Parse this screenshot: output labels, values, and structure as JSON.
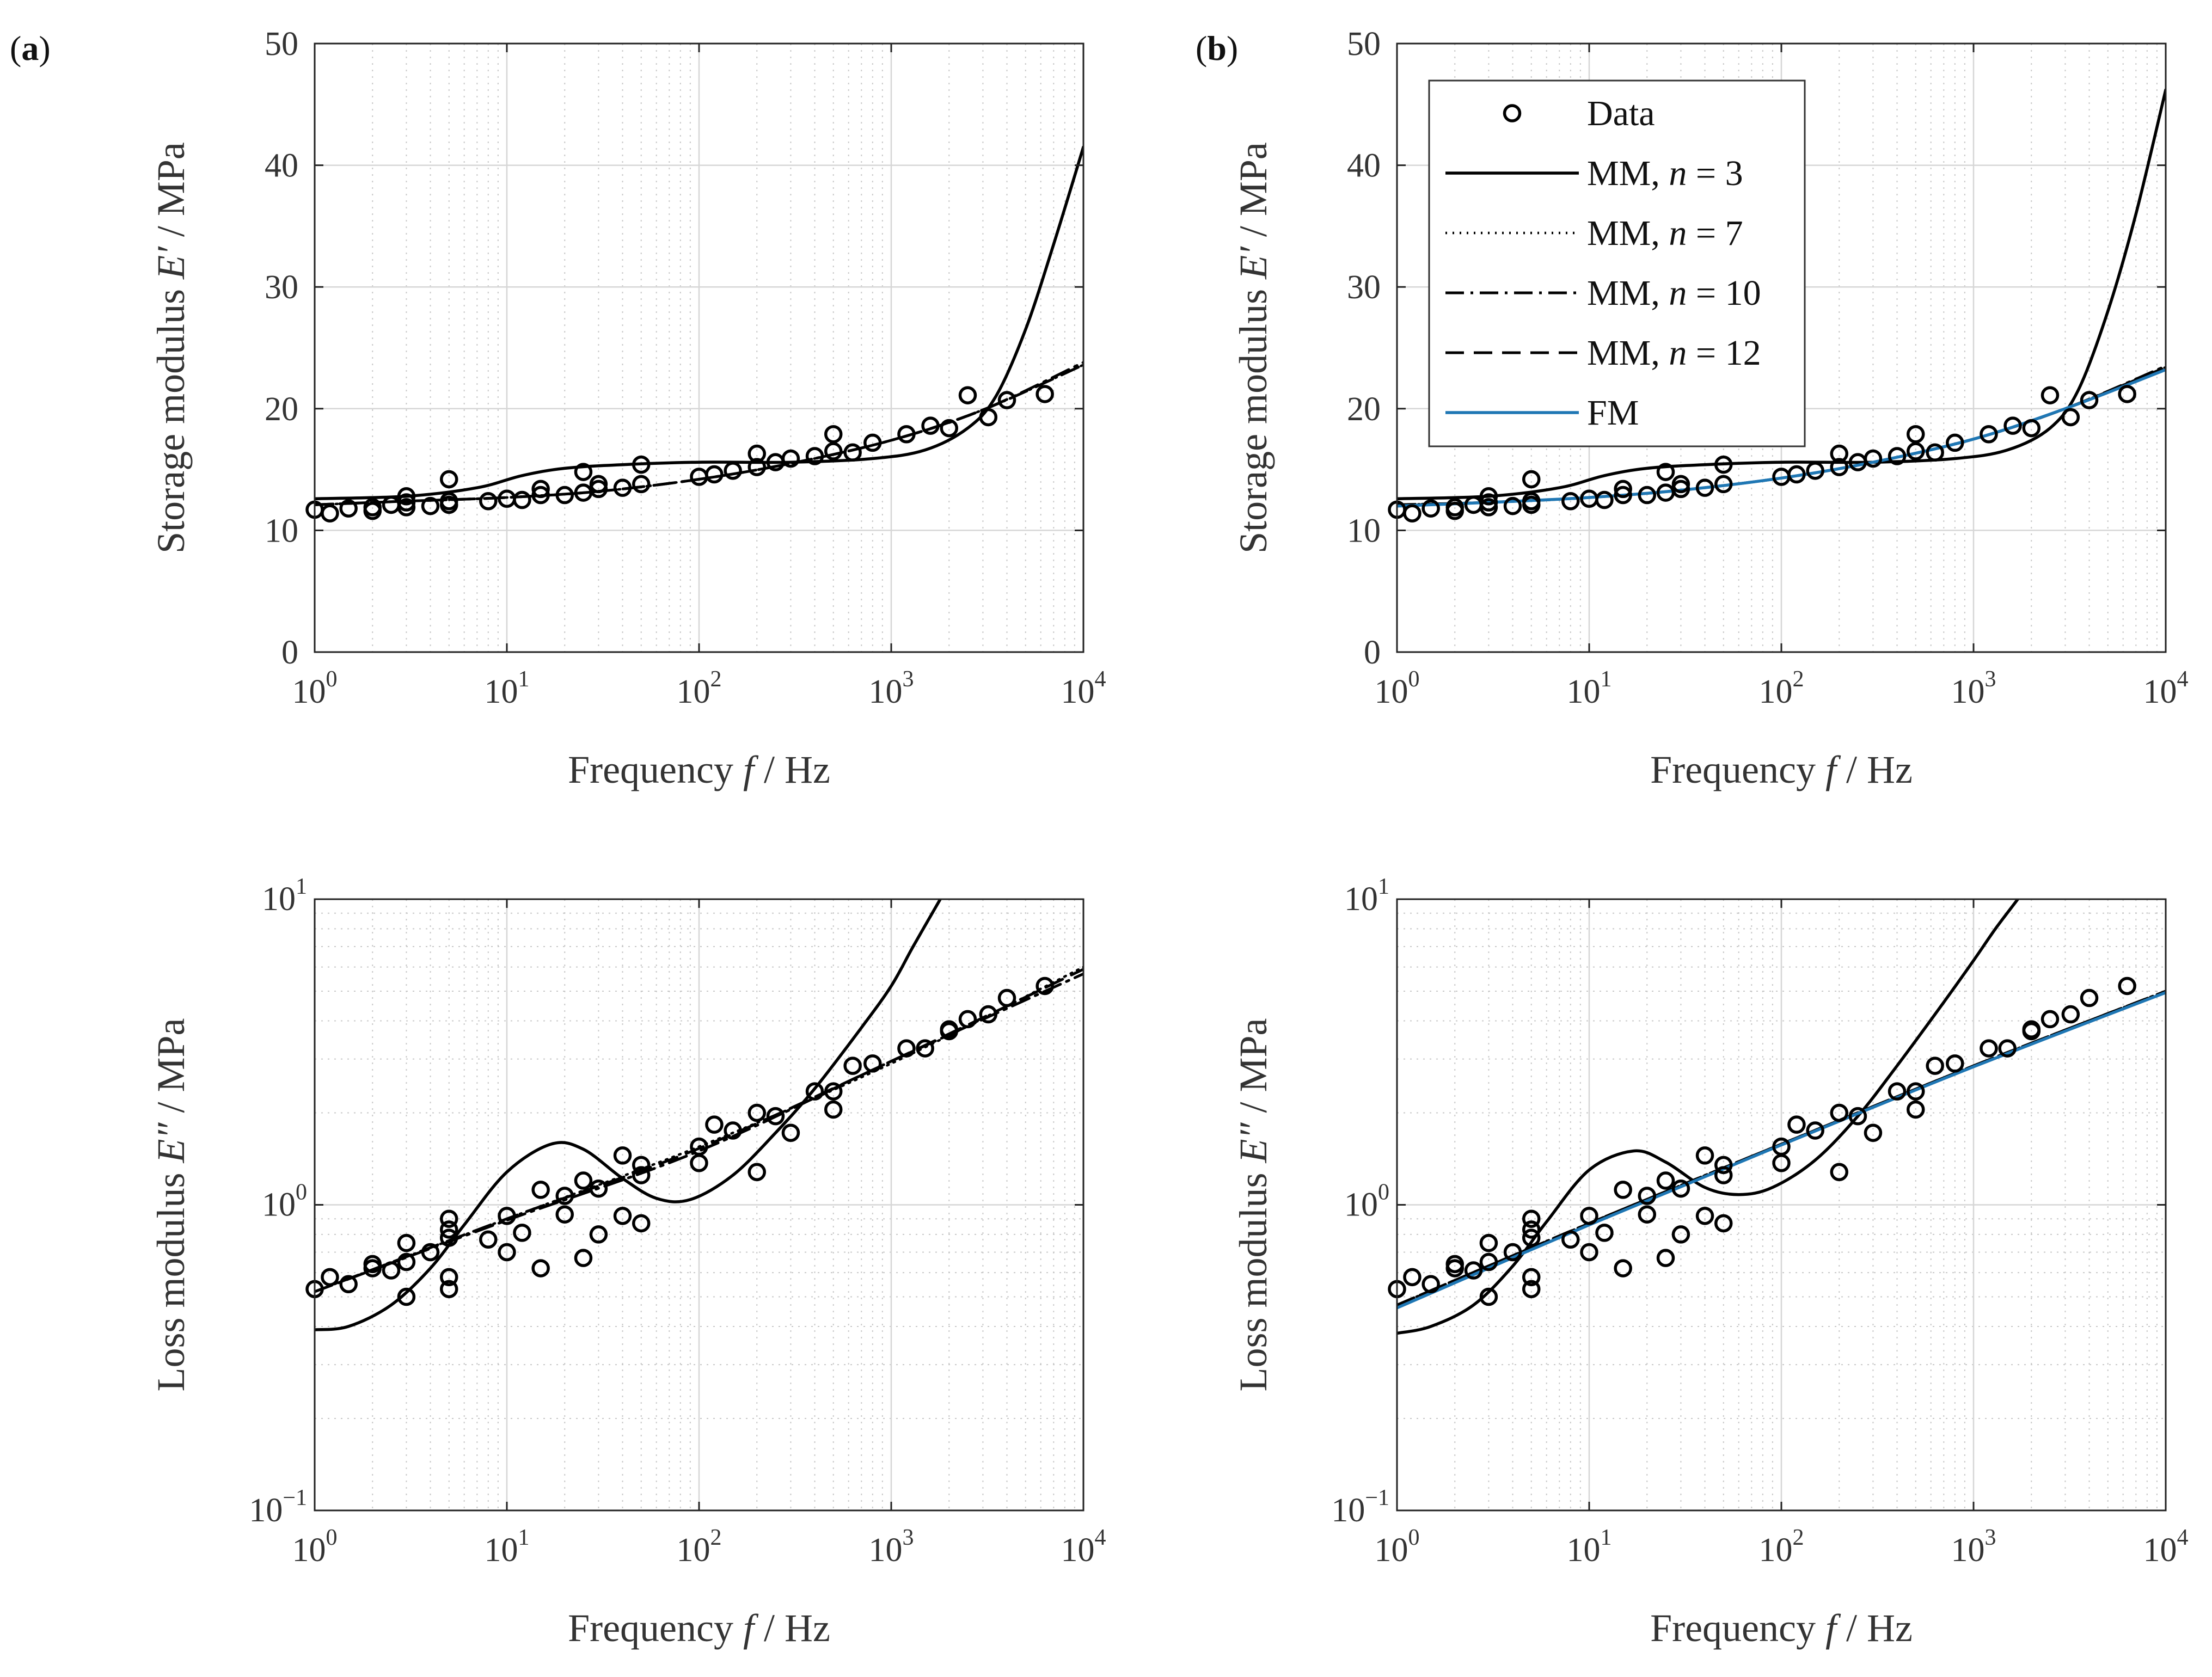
{
  "figure": {
    "panel_labels": [
      "(a)",
      "(b)"
    ],
    "axis_labels": {
      "frequency": "Frequency f / Hz",
      "storage": "Storage modulus E′ / MPa",
      "loss": "Loss modulus E″ / MPa"
    },
    "legend": [
      {
        "label": "Data",
        "style": "marker"
      },
      {
        "label": "MM, n = 3",
        "style": "solid"
      },
      {
        "label": "MM, n = 7",
        "style": "dotted"
      },
      {
        "label": "MM, n = 10",
        "style": "dashdot"
      },
      {
        "label": "MM, n = 12",
        "style": "dashed"
      },
      {
        "label": "FM",
        "style": "blue"
      }
    ]
  },
  "chart_data": [
    {
      "type": "scatter",
      "panel": "(a)",
      "xlabel": "Frequency f / Hz",
      "ylabel": "Storage modulus E′ / MPa",
      "xscale": "log",
      "xlim": [
        1,
        10000
      ],
      "yscale": "linear",
      "ylim": [
        0,
        50
      ],
      "xticks": [
        1,
        10,
        100,
        1000,
        10000
      ],
      "yticks": [
        0,
        10,
        20,
        30,
        40,
        50
      ],
      "grid": true,
      "legend": "none",
      "data": {
        "x": [
          1,
          1.2,
          1.5,
          2,
          2,
          2.5,
          3,
          3,
          3,
          4,
          5,
          5,
          5,
          8,
          10,
          12,
          15,
          15,
          20,
          25,
          25,
          30,
          30,
          40,
          50,
          50,
          100,
          120,
          150,
          200,
          200,
          250,
          300,
          400,
          500,
          500,
          630,
          800,
          1200,
          1600,
          2000,
          2500,
          3200,
          4000,
          6300
        ],
        "y": [
          11.7,
          11.4,
          11.8,
          11.6,
          11.9,
          12.1,
          12.8,
          12.3,
          11.9,
          12.0,
          14.2,
          12.4,
          12.1,
          12.4,
          12.6,
          12.5,
          13.4,
          12.9,
          12.9,
          14.8,
          13.1,
          13.8,
          13.4,
          13.5,
          15.4,
          13.8,
          14.4,
          14.6,
          14.9,
          16.3,
          15.2,
          15.6,
          15.9,
          16.1,
          17.9,
          16.5,
          16.4,
          17.2,
          17.9,
          18.6,
          18.4,
          21.1,
          19.3,
          20.7,
          21.2
        ]
      },
      "series": [
        {
          "name": "MM, n = 3",
          "style": "solid",
          "x": [
            1,
            3,
            7,
            12,
            20,
            40,
            100,
            300,
            800,
            1500,
            2500,
            3500,
            5000,
            7000,
            10000
          ],
          "y": [
            12.6,
            12.8,
            13.5,
            14.5,
            15.1,
            15.4,
            15.6,
            15.6,
            15.9,
            16.6,
            18.4,
            21.0,
            26.5,
            33.5,
            41.5
          ]
        },
        {
          "name": "MM, n = 7",
          "style": "dotted",
          "x": [
            1,
            3,
            10,
            30,
            100,
            300,
            1000,
            3000,
            10000
          ],
          "y": [
            12.1,
            12.4,
            12.7,
            13.2,
            14.2,
            15.5,
            17.4,
            19.9,
            23.6
          ]
        },
        {
          "name": "MM, n = 10",
          "style": "dashdot",
          "x": [
            1,
            3,
            10,
            30,
            100,
            300,
            1000,
            3000,
            10000
          ],
          "y": [
            12.1,
            12.4,
            12.7,
            13.2,
            14.2,
            15.5,
            17.4,
            19.9,
            23.8
          ]
        },
        {
          "name": "MM, n = 12",
          "style": "dashed",
          "x": [
            1,
            3,
            10,
            30,
            100,
            300,
            1000,
            3000,
            10000
          ],
          "y": [
            12.1,
            12.4,
            12.7,
            13.2,
            14.2,
            15.5,
            17.4,
            19.9,
            23.6
          ]
        }
      ]
    },
    {
      "type": "scatter",
      "panel": "(a)",
      "xlabel": "Frequency f / Hz",
      "ylabel": "Loss modulus E″ / MPa",
      "xscale": "log",
      "xlim": [
        1,
        10000
      ],
      "yscale": "log",
      "ylim": [
        0.1,
        10
      ],
      "xticks": [
        1,
        10,
        100,
        1000,
        10000
      ],
      "yticks": [
        0.1,
        1,
        10
      ],
      "grid": true,
      "legend": "none",
      "data": {
        "x": [
          1,
          1.2,
          1.5,
          2,
          2,
          2.5,
          3,
          3,
          3,
          4,
          5,
          5,
          5,
          5,
          5,
          8,
          10,
          10,
          12,
          15,
          15,
          20,
          20,
          25,
          25,
          30,
          30,
          40,
          40,
          50,
          50,
          50,
          100,
          100,
          120,
          150,
          200,
          200,
          250,
          300,
          400,
          500,
          500,
          630,
          800,
          1200,
          1500,
          2000,
          2000,
          2500,
          3200,
          4000,
          6300
        ],
        "y": [
          0.53,
          0.58,
          0.55,
          0.64,
          0.62,
          0.61,
          0.5,
          0.75,
          0.65,
          0.7,
          0.9,
          0.83,
          0.78,
          0.58,
          0.53,
          0.77,
          0.7,
          0.92,
          0.81,
          1.12,
          0.62,
          0.93,
          1.07,
          0.67,
          1.2,
          0.8,
          1.13,
          0.92,
          1.45,
          1.35,
          1.25,
          0.87,
          1.55,
          1.37,
          1.83,
          1.75,
          2.0,
          1.28,
          1.95,
          1.72,
          2.35,
          2.05,
          2.35,
          2.85,
          2.9,
          3.25,
          3.25,
          3.75,
          3.7,
          4.05,
          4.2,
          4.75,
          5.2
        ]
      },
      "series": [
        {
          "name": "MM, n = 3",
          "style": "solid",
          "x": [
            1,
            1.5,
            2.5,
            4,
            6,
            10,
            17,
            25,
            40,
            60,
            90,
            150,
            250,
            400,
            700,
            1000,
            1300,
            1800
          ],
          "y": [
            0.39,
            0.4,
            0.47,
            0.62,
            0.86,
            1.28,
            1.58,
            1.52,
            1.22,
            1.05,
            1.04,
            1.25,
            1.72,
            2.4,
            3.8,
            5.2,
            7.0,
            10.0
          ]
        },
        {
          "name": "MM, n = 7",
          "style": "dotted",
          "x": [
            1,
            10,
            100,
            1000,
            10000
          ],
          "y": [
            0.52,
            0.9,
            1.55,
            2.9,
            6.0
          ]
        },
        {
          "name": "MM, n = 10",
          "style": "dashdot",
          "x": [
            1,
            10,
            100,
            1000,
            10000
          ],
          "y": [
            0.52,
            0.89,
            1.5,
            2.95,
            5.7
          ]
        },
        {
          "name": "MM, n = 12",
          "style": "dashed",
          "x": [
            1,
            10,
            100,
            1000,
            10000
          ],
          "y": [
            0.52,
            0.9,
            1.53,
            2.95,
            5.9
          ]
        }
      ]
    },
    {
      "type": "scatter",
      "panel": "(b)",
      "xlabel": "Frequency f / Hz",
      "ylabel": "Storage modulus E′ / MPa",
      "xscale": "log",
      "xlim": [
        1,
        10000
      ],
      "yscale": "linear",
      "ylim": [
        0,
        50
      ],
      "xticks": [
        1,
        10,
        100,
        1000,
        10000
      ],
      "yticks": [
        0,
        10,
        20,
        30,
        40,
        50
      ],
      "grid": true,
      "legend": "top-left",
      "data": {
        "x": [
          1,
          1.2,
          1.5,
          2,
          2,
          2.5,
          3,
          3,
          3,
          4,
          5,
          5,
          5,
          8,
          10,
          12,
          15,
          15,
          20,
          25,
          25,
          30,
          30,
          40,
          50,
          50,
          100,
          120,
          150,
          200,
          200,
          250,
          300,
          400,
          500,
          500,
          630,
          800,
          1200,
          1600,
          2000,
          2500,
          3200,
          4000,
          6300
        ],
        "y": [
          11.7,
          11.4,
          11.8,
          11.6,
          11.9,
          12.1,
          12.8,
          12.3,
          11.9,
          12.0,
          14.2,
          12.4,
          12.1,
          12.4,
          12.6,
          12.5,
          13.4,
          12.9,
          12.9,
          14.8,
          13.1,
          13.8,
          13.4,
          13.5,
          15.4,
          13.8,
          14.4,
          14.6,
          14.9,
          16.3,
          15.2,
          15.6,
          15.9,
          16.1,
          17.9,
          16.5,
          16.4,
          17.2,
          17.9,
          18.6,
          18.4,
          21.1,
          19.3,
          20.7,
          21.2
        ]
      },
      "series": [
        {
          "name": "MM, n = 3",
          "style": "solid",
          "x": [
            1,
            3,
            7,
            12,
            20,
            40,
            100,
            300,
            800,
            1500,
            2500,
            3500,
            5000,
            7000,
            10000
          ],
          "y": [
            12.6,
            12.8,
            13.5,
            14.5,
            15.1,
            15.4,
            15.6,
            15.6,
            15.9,
            16.6,
            18.4,
            21.5,
            28.0,
            36.0,
            46.2
          ]
        },
        {
          "name": "MM, n = 7",
          "style": "dotted",
          "x": [
            1,
            3,
            10,
            30,
            100,
            300,
            1000,
            3000,
            10000
          ],
          "y": [
            12.1,
            12.3,
            12.7,
            13.3,
            14.3,
            15.6,
            17.5,
            20.0,
            23.4
          ]
        },
        {
          "name": "MM, n = 10",
          "style": "dashdot",
          "x": [
            1,
            3,
            10,
            30,
            100,
            300,
            1000,
            3000,
            10000
          ],
          "y": [
            12.1,
            12.3,
            12.7,
            13.3,
            14.3,
            15.6,
            17.5,
            20.0,
            23.5
          ]
        },
        {
          "name": "MM, n = 12",
          "style": "dashed",
          "x": [
            1,
            3,
            10,
            30,
            100,
            300,
            1000,
            3000,
            10000
          ],
          "y": [
            12.1,
            12.3,
            12.7,
            13.3,
            14.3,
            15.6,
            17.5,
            20.0,
            23.4
          ]
        },
        {
          "name": "FM",
          "style": "blue",
          "x": [
            1,
            3,
            10,
            30,
            100,
            300,
            1000,
            3000,
            10000
          ],
          "y": [
            12.0,
            12.3,
            12.7,
            13.3,
            14.3,
            15.6,
            17.5,
            20.0,
            23.2
          ]
        }
      ]
    },
    {
      "type": "scatter",
      "panel": "(b)",
      "xlabel": "Frequency f / Hz",
      "ylabel": "Loss modulus E″ / MPa",
      "xscale": "log",
      "xlim": [
        1,
        10000
      ],
      "yscale": "log",
      "ylim": [
        0.1,
        10
      ],
      "xticks": [
        1,
        10,
        100,
        1000,
        10000
      ],
      "yticks": [
        0.1,
        1,
        10
      ],
      "grid": true,
      "legend": "none",
      "data": {
        "x": [
          1,
          1.2,
          1.5,
          2,
          2,
          2.5,
          3,
          3,
          3,
          4,
          5,
          5,
          5,
          5,
          5,
          8,
          10,
          10,
          12,
          15,
          15,
          20,
          20,
          25,
          25,
          30,
          30,
          40,
          40,
          50,
          50,
          50,
          100,
          100,
          120,
          150,
          200,
          200,
          250,
          300,
          400,
          500,
          500,
          630,
          800,
          1200,
          1500,
          2000,
          2000,
          2500,
          3200,
          4000,
          6300
        ],
        "y": [
          0.53,
          0.58,
          0.55,
          0.64,
          0.62,
          0.61,
          0.5,
          0.75,
          0.65,
          0.7,
          0.9,
          0.83,
          0.78,
          0.58,
          0.53,
          0.77,
          0.7,
          0.92,
          0.81,
          1.12,
          0.62,
          0.93,
          1.07,
          0.67,
          1.2,
          0.8,
          1.13,
          0.92,
          1.45,
          1.35,
          1.25,
          0.87,
          1.55,
          1.37,
          1.83,
          1.75,
          2.0,
          1.28,
          1.95,
          1.72,
          2.35,
          2.05,
          2.35,
          2.85,
          2.9,
          3.25,
          3.25,
          3.75,
          3.7,
          4.05,
          4.2,
          4.75,
          5.2
        ]
      },
      "series": [
        {
          "name": "MM, n = 3",
          "style": "solid",
          "x": [
            1,
            1.5,
            2.5,
            4,
            6,
            10,
            17,
            25,
            40,
            60,
            90,
            150,
            250,
            400,
            700,
            1000,
            1300,
            1700
          ],
          "y": [
            0.38,
            0.4,
            0.47,
            0.63,
            0.88,
            1.3,
            1.5,
            1.38,
            1.14,
            1.08,
            1.14,
            1.4,
            1.95,
            2.85,
            4.6,
            6.3,
            8.0,
            10.0
          ]
        },
        {
          "name": "MM, n = 7",
          "style": "dotted",
          "x": [
            1,
            10,
            100,
            1000,
            10000
          ],
          "y": [
            0.47,
            0.87,
            1.58,
            2.85,
            5.0
          ]
        },
        {
          "name": "MM, n = 10",
          "style": "dashdot",
          "x": [
            1,
            10,
            100,
            1000,
            10000
          ],
          "y": [
            0.47,
            0.87,
            1.58,
            2.85,
            5.0
          ]
        },
        {
          "name": "MM, n = 12",
          "style": "dashed",
          "x": [
            1,
            10,
            100,
            1000,
            10000
          ],
          "y": [
            0.47,
            0.87,
            1.58,
            2.85,
            5.0
          ]
        },
        {
          "name": "FM",
          "style": "blue",
          "x": [
            1,
            10,
            100,
            1000,
            10000
          ],
          "y": [
            0.46,
            0.86,
            1.57,
            2.83,
            4.95
          ]
        }
      ]
    }
  ]
}
